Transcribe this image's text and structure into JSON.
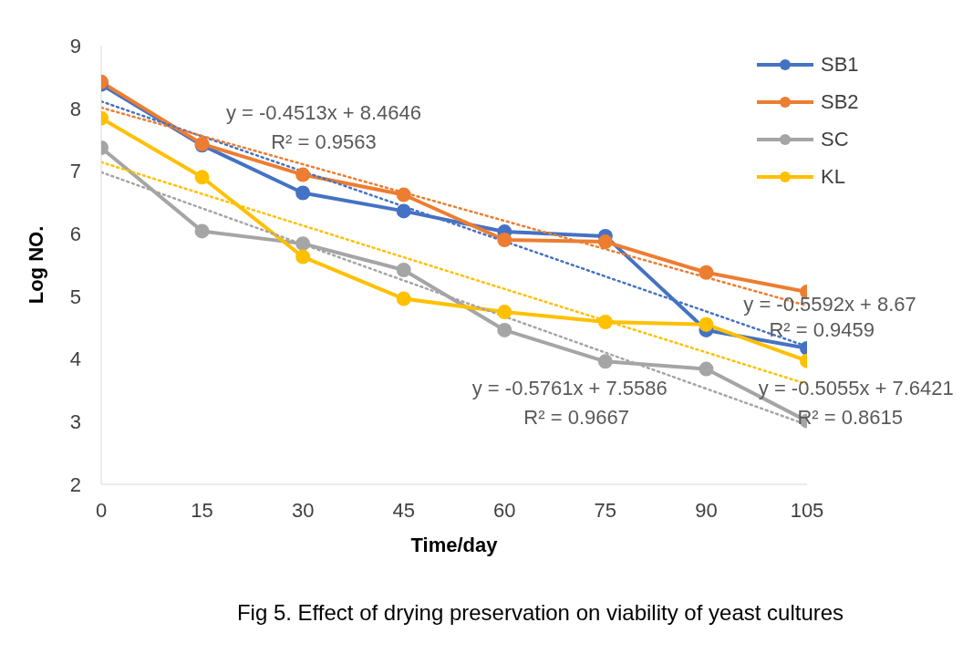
{
  "chart_data": {
    "type": "line",
    "xlabel": "Time/day",
    "ylabel": "Log NO.",
    "x": [
      0,
      15,
      30,
      45,
      60,
      75,
      90,
      105
    ],
    "xlim": [
      0,
      105
    ],
    "xticks": [
      0,
      15,
      30,
      45,
      60,
      75,
      90,
      105
    ],
    "ylim": [
      2,
      9
    ],
    "yticks": [
      2,
      3,
      4,
      5,
      6,
      7,
      8,
      9
    ],
    "grid": false,
    "legend": "top right",
    "marker": "circle",
    "line_style": "solid",
    "series": [
      {
        "name": "SB1",
        "color": "#4472c4",
        "values": [
          8.38,
          7.41,
          6.65,
          6.36,
          6.03,
          5.96,
          4.46,
          4.17
        ]
      },
      {
        "name": "SB2",
        "color": "#ed7d31",
        "values": [
          8.42,
          7.43,
          6.94,
          6.62,
          5.9,
          5.87,
          5.38,
          5.07
        ]
      },
      {
        "name": "SC",
        "color": "#a5a5a5",
        "values": [
          7.37,
          6.04,
          5.84,
          5.42,
          4.46,
          3.96,
          3.84,
          3.01
        ]
      },
      {
        "name": "KL",
        "color": "#ffc000",
        "values": [
          7.84,
          6.9,
          5.63,
          4.96,
          4.75,
          4.59,
          4.55,
          3.97
        ]
      },
      {
        "type": "line",
        "color": "#4472c4",
        "values": [
          8.11,
          null,
          null,
          null,
          null,
          null,
          null,
          4.2
        ],
        "line_style": "dotted",
        "marker": "none"
      },
      {
        "type": "line",
        "color": "#ed7d31",
        "values": [
          8.01,
          null,
          null,
          null,
          null,
          null,
          null,
          4.85
        ],
        "line_style": "dotted",
        "marker": "none"
      },
      {
        "type": "line",
        "color": "#a5a5a5",
        "values": [
          6.98,
          null,
          null,
          null,
          null,
          null,
          null,
          2.95
        ],
        "line_style": "dotted",
        "marker": "none"
      },
      {
        "type": "line",
        "color": "#ffc000",
        "values": [
          7.14,
          null,
          null,
          null,
          null,
          null,
          null,
          3.6
        ],
        "line_style": "dotted",
        "marker": "none"
      }
    ],
    "annotations": [
      "y = -0.4513x + 8.4646",
      "R² = 0.9563",
      "y = -0.5592x + 8.67",
      "R² = 0.9459",
      "y = -0.5761x + 7.5586",
      "R² = 0.9667",
      "y = -0.5055x + 7.6421",
      "R² = 0.8615",
      "Fig 5. Effect of drying preservation on viability of yeast cultures"
    ]
  }
}
